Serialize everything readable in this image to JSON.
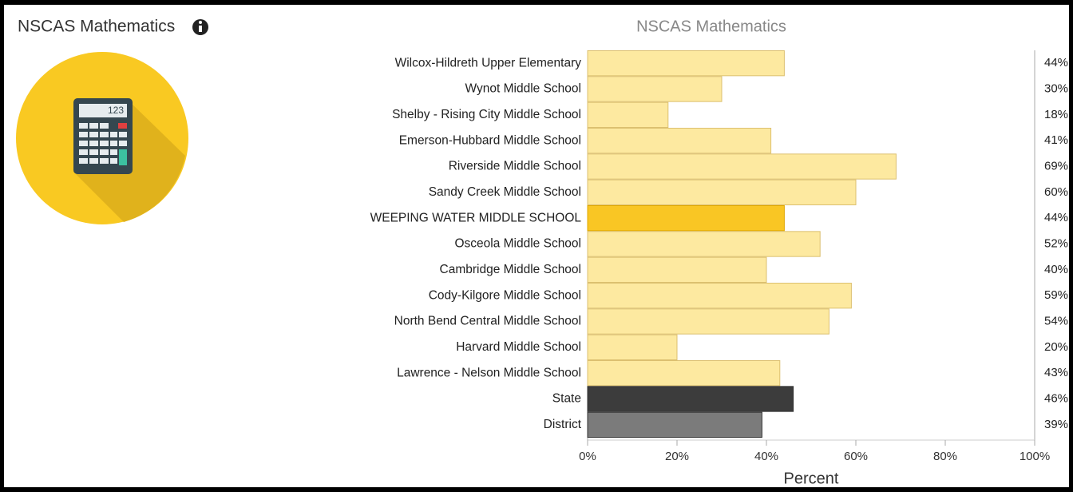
{
  "header": {
    "title": "NSCAS Mathematics",
    "icon_text": "123"
  },
  "chart_data": {
    "type": "hbar",
    "title": "NSCAS Mathematics",
    "x_label": "Percent",
    "categories": [
      "Wilcox-Hildreth Upper Elementary",
      "Wynot Middle School",
      "Shelby - Rising City Middle School",
      "Emerson-Hubbard Middle School",
      "Riverside Middle School",
      "Sandy Creek Middle School",
      "WEEPING WATER MIDDLE SCHOOL",
      "Osceola Middle School",
      "Cambridge Middle School",
      "Cody-Kilgore Middle School",
      "North Bend Central Middle School",
      "Harvard Middle School",
      "Lawrence - Nelson Middle School",
      "State",
      "District"
    ],
    "values": [
      44,
      30,
      18,
      41,
      69,
      60,
      44,
      52,
      40,
      59,
      54,
      20,
      43,
      46,
      39
    ],
    "value_labels": [
      "44%",
      "30%",
      "18%",
      "41%",
      "69%",
      "60%",
      "44%",
      "52%",
      "40%",
      "59%",
      "54%",
      "20%",
      "43%",
      "46%",
      "39%"
    ],
    "colors": [
      "#fde9a0",
      "#fde9a0",
      "#fde9a0",
      "#fde9a0",
      "#fde9a0",
      "#fde9a0",
      "#f9c624",
      "#fde9a0",
      "#fde9a0",
      "#fde9a0",
      "#fde9a0",
      "#fde9a0",
      "#fde9a0",
      "#3c3c3c",
      "#7b7b7b"
    ],
    "xlim": [
      0,
      100
    ],
    "xticks": [
      {
        "value": 0,
        "label": "0%"
      },
      {
        "value": 20,
        "label": "20%"
      },
      {
        "value": 40,
        "label": "40%"
      },
      {
        "value": 60,
        "label": "60%"
      },
      {
        "value": 80,
        "label": "80%"
      },
      {
        "value": 100,
        "label": "100%"
      }
    ]
  }
}
